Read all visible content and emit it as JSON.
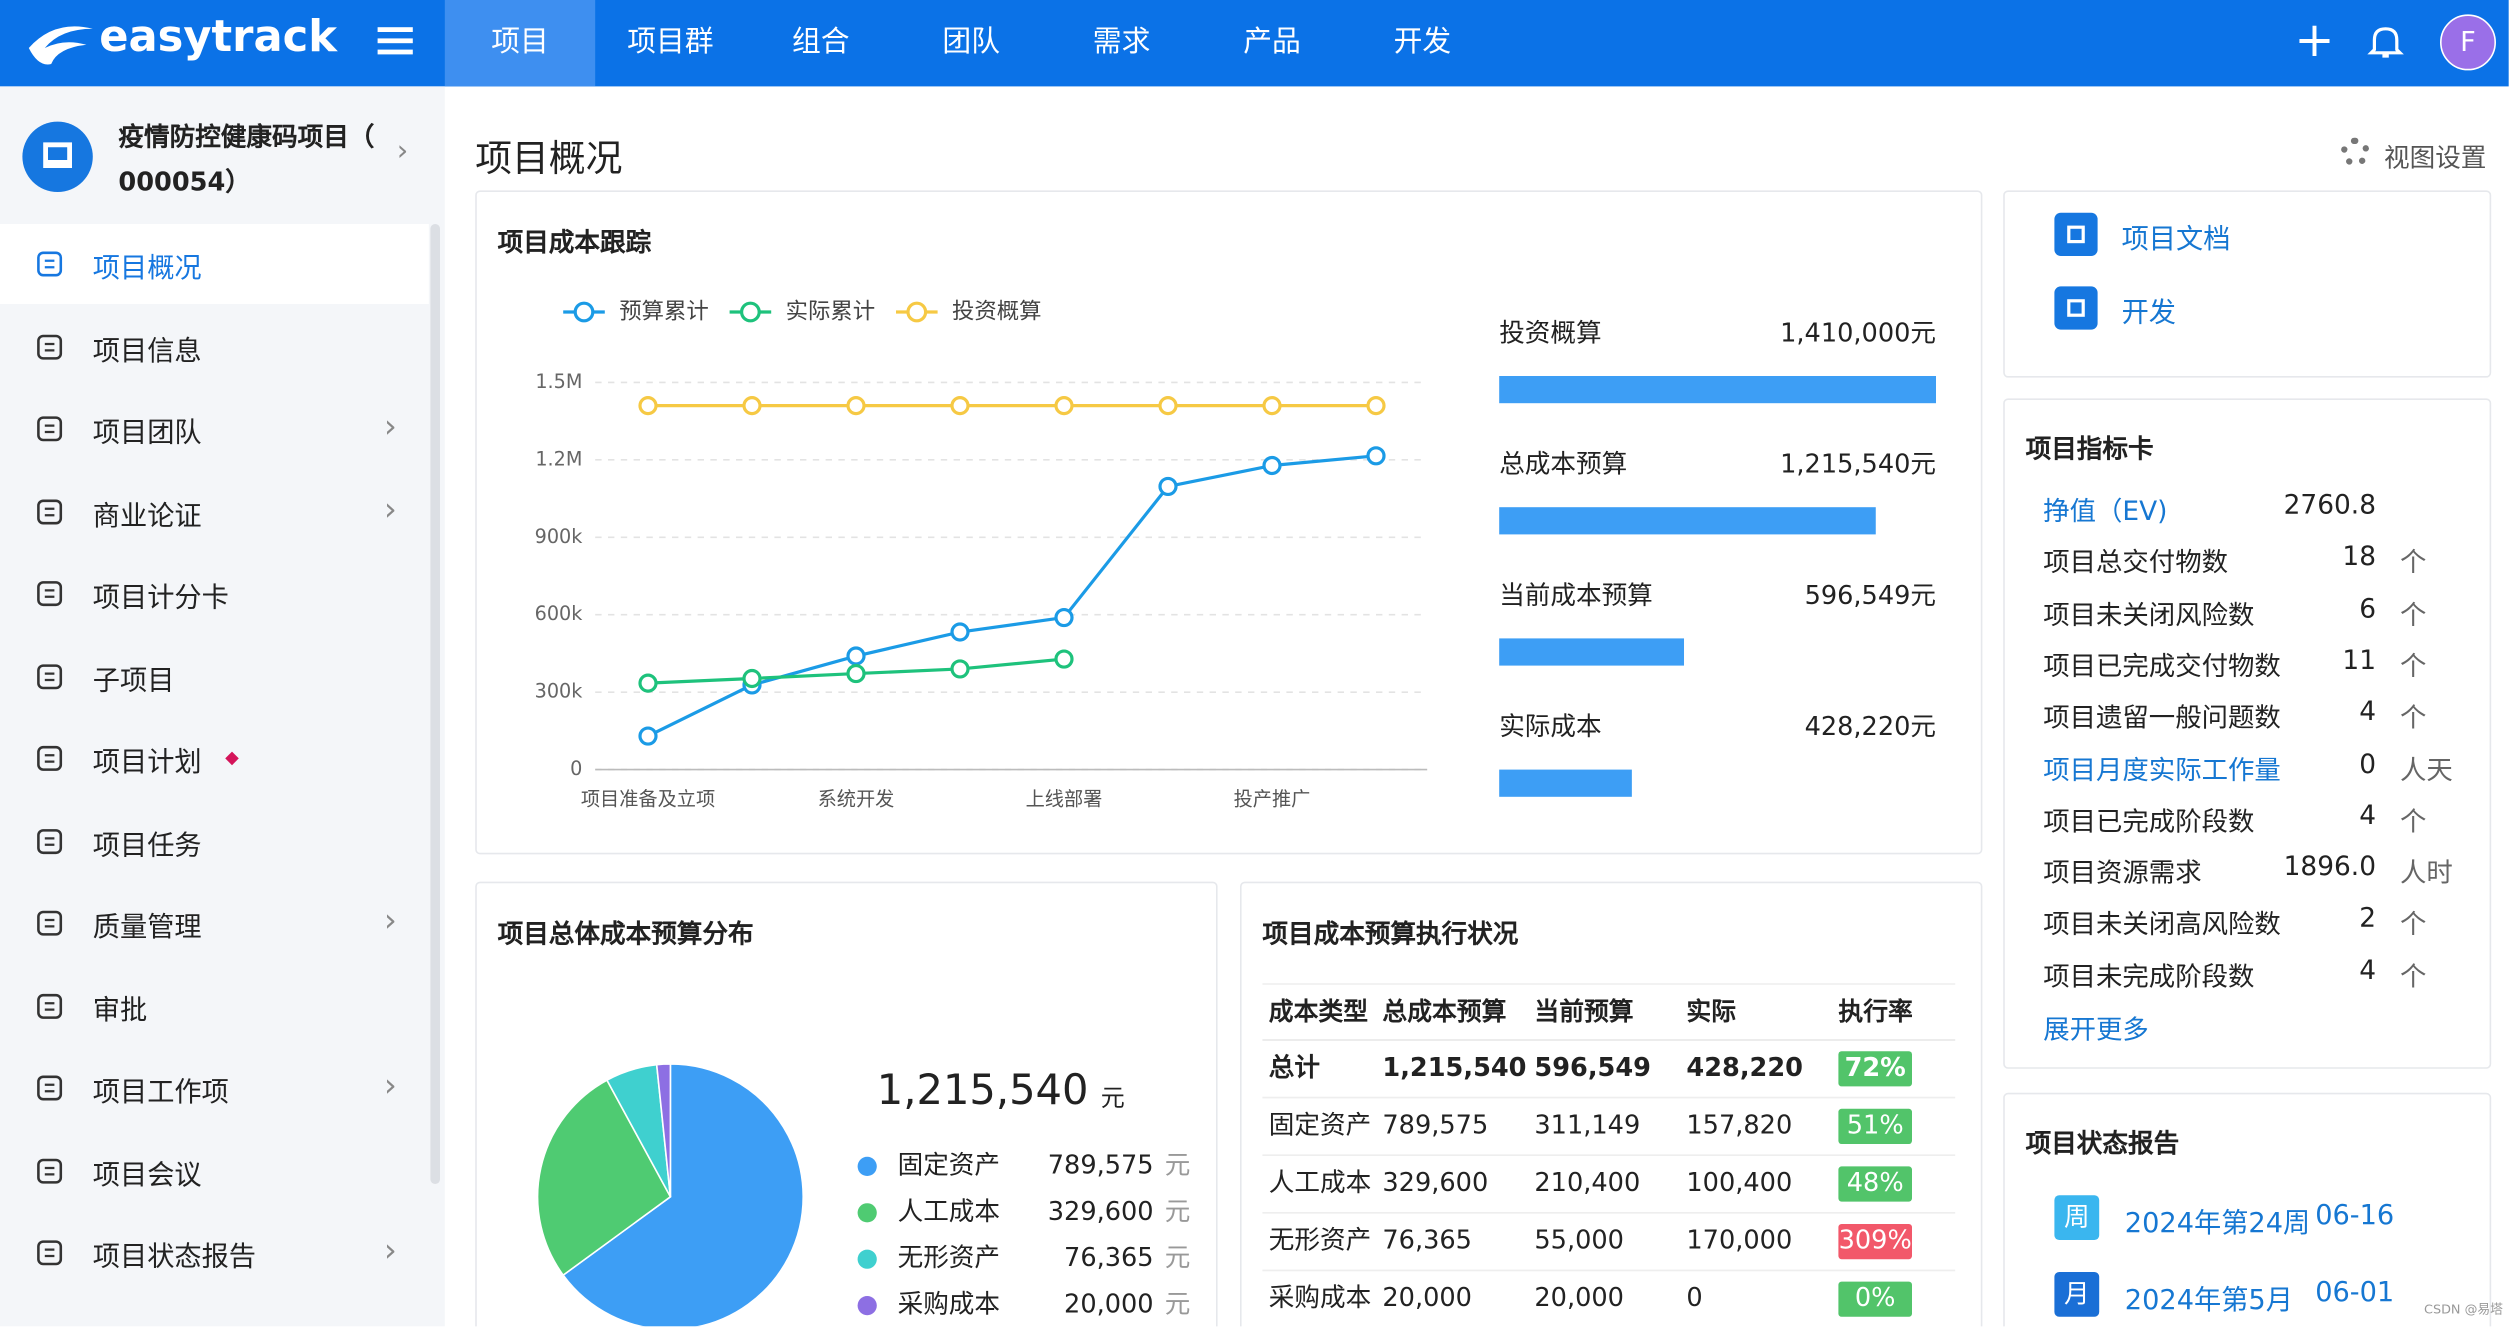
{
  "nav": {
    "brand": "easytrack",
    "tabs": [
      "项目",
      "项目群",
      "组合",
      "团队",
      "需求",
      "产品",
      "开发"
    ],
    "active_tab": 0,
    "avatar": "F"
  },
  "sidebar": {
    "project_name": [
      "疫情防控健康码项目（",
      "000054）"
    ],
    "menu": [
      {
        "label": "项目概况",
        "arrow": false,
        "active": true
      },
      {
        "label": "项目信息",
        "arrow": false
      },
      {
        "label": "项目团队",
        "arrow": true
      },
      {
        "label": "商业论证",
        "arrow": true
      },
      {
        "label": "项目计分卡",
        "arrow": false
      },
      {
        "label": "子项目",
        "arrow": false
      },
      {
        "label": "项目计划",
        "arrow": false,
        "dot": true
      },
      {
        "label": "项目任务",
        "arrow": false
      },
      {
        "label": "质量管理",
        "arrow": true
      },
      {
        "label": "审批",
        "arrow": false
      },
      {
        "label": "项目工作项",
        "arrow": true
      },
      {
        "label": "项目会议",
        "arrow": false
      },
      {
        "label": "项目状态报告",
        "arrow": true
      }
    ]
  },
  "page": {
    "title": "项目概况",
    "view_settings": "视图设置"
  },
  "chart_data": [
    {
      "type": "line",
      "title": "项目成本跟踪",
      "categories": [
        "项目准备及立项",
        null,
        "系统开发",
        null,
        "上线部署",
        null,
        "投产推广",
        null
      ],
      "series": [
        {
          "name": "预算累计",
          "color": "#1b9be6",
          "values": [
            130000,
            328000,
            440000,
            533000,
            589000,
            1097000,
            1178000,
            1215540
          ]
        },
        {
          "name": "实际累计",
          "color": "#1ec27c",
          "values": [
            335000,
            353000,
            372000,
            390000,
            428220,
            null,
            null,
            null
          ]
        },
        {
          "name": "投资概算",
          "color": "#f6c944",
          "values": [
            1410000,
            1410000,
            1410000,
            1410000,
            1410000,
            1410000,
            1410000,
            1410000
          ]
        }
      ],
      "ylim": [
        0,
        1500000
      ],
      "yticks": [
        0,
        {
          "value": 300000,
          "label": "300k"
        },
        {
          "value": 600000,
          "label": "600k"
        },
        {
          "value": 900000,
          "label": "900k"
        },
        {
          "value": 1200000,
          "label": "1.2M"
        },
        {
          "value": 1500000,
          "label": "1.5M"
        }
      ],
      "grid": true,
      "legend": "top"
    },
    {
      "type": "bar",
      "orientation": "horizontal",
      "categories": [
        "投资概算",
        "总成本预算",
        "当前成本预算",
        "实际成本"
      ],
      "values": [
        1410000,
        1215540,
        596549,
        428220
      ],
      "value_labels": [
        "1,410,000元",
        "1,215,540元",
        "596,549元",
        "428,220元"
      ],
      "color": "#3d9ef5"
    },
    {
      "type": "pie",
      "title": "项目总体成本预算分布",
      "total": "1,215,540",
      "unit": "元",
      "categories": [
        "固定资产",
        "人工成本",
        "无形资产",
        "采购成本"
      ],
      "values": [
        789575,
        329600,
        76365,
        20000
      ],
      "value_labels": [
        "789,575",
        "329,600",
        "76,365",
        "20,000"
      ],
      "colors": [
        "#3d9ef5",
        "#4fcb72",
        "#3fd0cf",
        "#8d6fe3"
      ]
    }
  ],
  "budget_table": {
    "title": "项目成本预算执行状况",
    "headers": [
      "成本类型",
      "总成本预算",
      "当前预算",
      "实际",
      "执行率"
    ],
    "rows": [
      {
        "cells": [
          "总计",
          "1,215,540",
          "596,549",
          "428,220",
          "72%"
        ],
        "bold": true,
        "rate_color": "#52c46a"
      },
      {
        "cells": [
          "固定资产",
          "789,575",
          "311,149",
          "157,820",
          "51%"
        ],
        "rate_color": "#52c46a"
      },
      {
        "cells": [
          "人工成本",
          "329,600",
          "210,400",
          "100,400",
          "48%"
        ],
        "rate_color": "#52c46a"
      },
      {
        "cells": [
          "无形资产",
          "76,365",
          "55,000",
          "170,000",
          "309%"
        ],
        "rate_color": "#f2586a"
      },
      {
        "cells": [
          "采购成本",
          "20,000",
          "20,000",
          "0",
          "0%"
        ],
        "rate_color": "#52c46a"
      }
    ]
  },
  "links": [
    "项目文档",
    "开发"
  ],
  "indicators": {
    "title": "项目指标卡",
    "rows": [
      {
        "name": "挣值（EV)",
        "value": "2760.8",
        "link": true
      },
      {
        "name": "项目总交付物数",
        "value": "18",
        "unit": "个"
      },
      {
        "name": "项目未关闭风险数",
        "value": "6",
        "unit": "个"
      },
      {
        "name": "项目已完成交付物数",
        "value": "11",
        "unit": "个"
      },
      {
        "name": "项目遗留一般问题数",
        "value": "4",
        "unit": "个"
      },
      {
        "name": "项目月度实际工作量",
        "value": "0",
        "unit": "人天",
        "link": true
      },
      {
        "name": "项目已完成阶段数",
        "value": "4",
        "unit": "个"
      },
      {
        "name": "项目资源需求",
        "value": "1896.0",
        "unit": "人时"
      },
      {
        "name": "项目未关闭高风险数",
        "value": "2",
        "unit": "个"
      },
      {
        "name": "项目未完成阶段数",
        "value": "4",
        "unit": "个"
      }
    ],
    "more": "展开更多"
  },
  "status_report": {
    "title": "项目状态报告",
    "items": [
      {
        "badge": "周",
        "text": "2024年第24周",
        "date": "06-16",
        "color": "#3ab6ef"
      },
      {
        "badge": "月",
        "text": "2024年第5月",
        "date": "06-01",
        "color": "#1a6fd6"
      }
    ]
  },
  "watermark": "CSDN @易塔"
}
